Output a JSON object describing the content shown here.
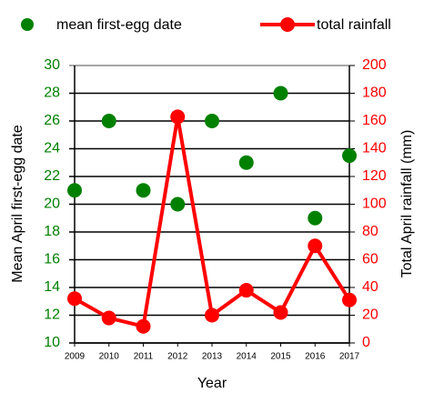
{
  "chart_data": {
    "type": "scatter-line",
    "x_label": "Year",
    "y_label": "Mean April first-egg date",
    "y2_label": "Total April rainfall (mm)",
    "x": [
      2009,
      2010,
      2011,
      2012,
      2013,
      2014,
      2015,
      2016,
      2017
    ],
    "xlim": [
      2009,
      2017
    ],
    "xticks": [
      2009,
      2010,
      2011,
      2012,
      2013,
      2014,
      2015,
      2016,
      2017
    ],
    "ylim": [
      10,
      30
    ],
    "yticks": [
      10,
      12,
      14,
      16,
      18,
      20,
      22,
      24,
      26,
      28,
      30
    ],
    "y2lim": [
      0,
      200
    ],
    "y2ticks": [
      0,
      20,
      40,
      60,
      80,
      100,
      120,
      140,
      160,
      180,
      200
    ],
    "grid": true,
    "series": [
      {
        "name": "mean first-egg date",
        "type": "scatter",
        "color": "#008000",
        "values": [
          21,
          26,
          21,
          20,
          26,
          23,
          28,
          19,
          23.5
        ]
      },
      {
        "name": "total rainfall",
        "type": "line",
        "axis": "y2",
        "color": "#ff0000",
        "values": [
          32,
          18,
          12,
          163,
          20,
          38,
          22,
          70,
          31
        ]
      }
    ]
  }
}
